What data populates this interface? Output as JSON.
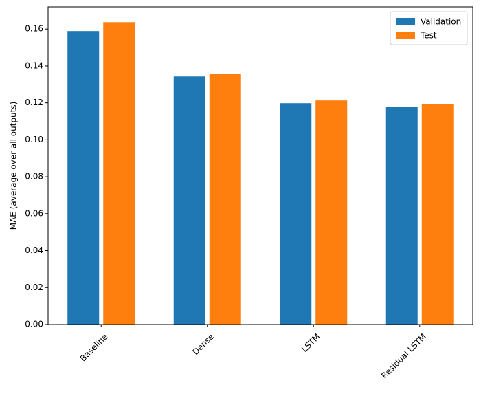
{
  "chart_data": {
    "type": "bar",
    "ylabel": "MAE (average over all outputs)",
    "categories": [
      "Baseline",
      "Dense",
      "LSTM",
      "Residual LSTM"
    ],
    "series": [
      {
        "name": "Validation",
        "color": "#1f77b4",
        "values": [
          0.1589,
          0.1343,
          0.1198,
          0.118
        ]
      },
      {
        "name": "Test",
        "color": "#ff7f0e",
        "values": [
          0.1637,
          0.1358,
          0.1213,
          0.1194
        ]
      }
    ],
    "ylim": [
      0,
      0.172
    ],
    "yticks": [
      {
        "value": 0,
        "label": "0.00"
      },
      {
        "value": 0.02,
        "label": "0.02"
      },
      {
        "value": 0.04,
        "label": "0.04"
      },
      {
        "value": 0.06,
        "label": "0.06"
      },
      {
        "value": 0.08,
        "label": "0.08"
      },
      {
        "value": 0.1,
        "label": "0.10"
      },
      {
        "value": 0.12,
        "label": "0.12"
      },
      {
        "value": 0.14,
        "label": "0.14"
      },
      {
        "value": 0.16,
        "label": "0.16"
      }
    ],
    "legend": "upper right"
  }
}
